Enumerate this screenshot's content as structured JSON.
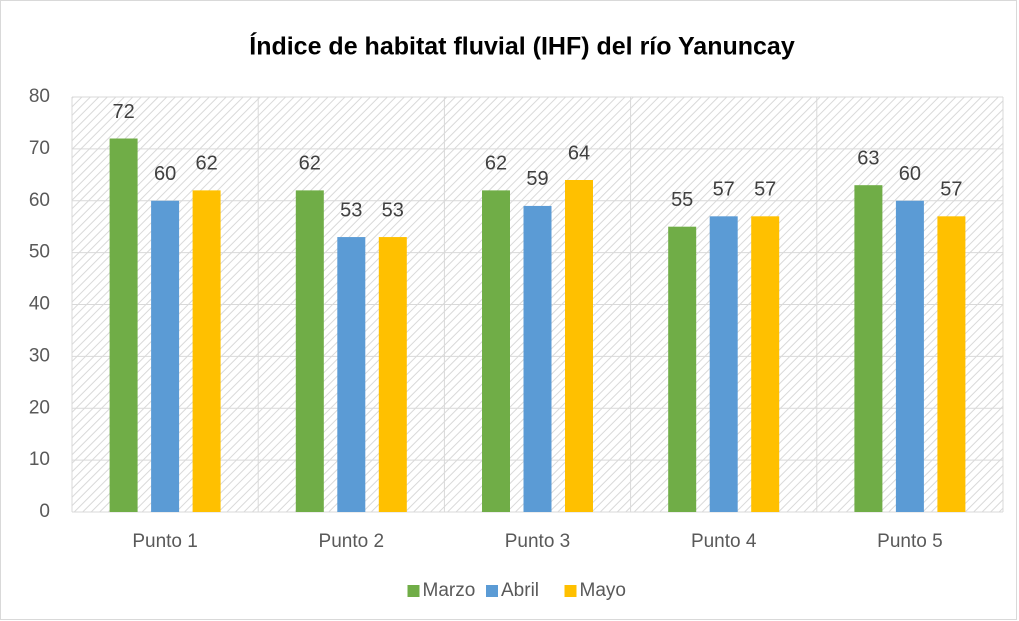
{
  "chart_data": {
    "type": "bar",
    "title": "Índice de habitat fluvial (IHF) del río Yanuncay",
    "categories": [
      "Punto 1",
      "Punto 2",
      "Punto 3",
      "Punto 4",
      "Punto 5"
    ],
    "series": [
      {
        "name": "Marzo",
        "color": "#70ad47",
        "values": [
          72,
          62,
          62,
          55,
          63
        ]
      },
      {
        "name": "Abril",
        "color": "#5b9bd5",
        "values": [
          60,
          53,
          59,
          57,
          60
        ]
      },
      {
        "name": "Mayo",
        "color": "#ffc000",
        "values": [
          62,
          53,
          64,
          57,
          57
        ]
      }
    ],
    "ylim": [
      0,
      80
    ],
    "yticks": [
      0,
      10,
      20,
      30,
      40,
      50,
      60,
      70,
      80
    ],
    "grid": true,
    "legend": "bottom"
  }
}
